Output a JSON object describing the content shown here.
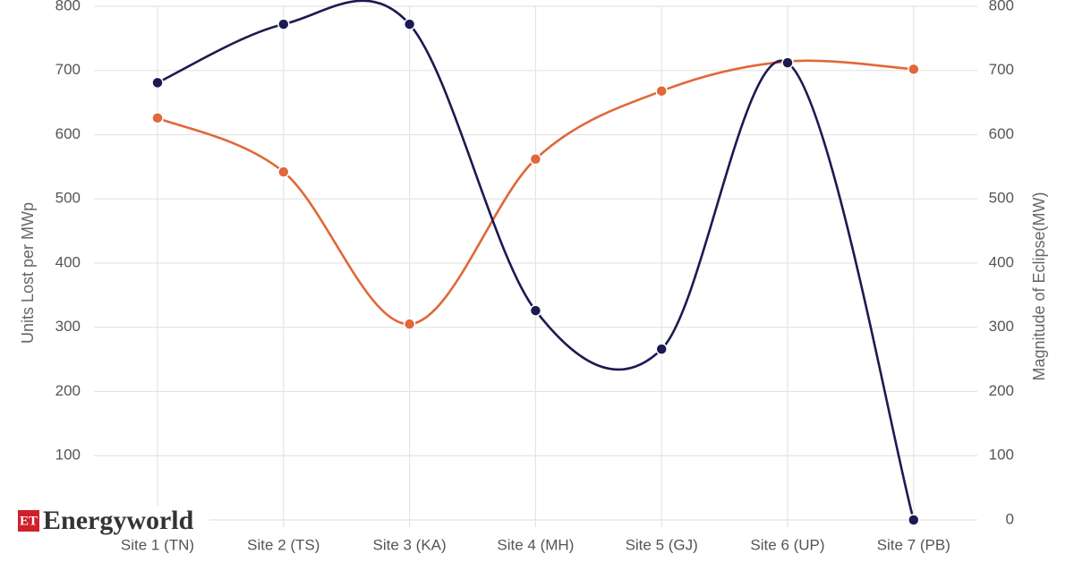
{
  "chart_data": {
    "type": "line",
    "brand": {
      "badge": "ET",
      "name": "Energyworld"
    },
    "categories": [
      "Site 1 (TN)",
      "Site 2 (TS)",
      "Site 3 (KA)",
      "Site 4 (MH)",
      "Site 5 (GJ)",
      "Site 6 (UP)",
      "Site 7 (PB)"
    ],
    "y_label": "Units Lost per MWp",
    "y2_label": "Magnitude of Eclipse(MW)",
    "ylim": [
      0,
      800
    ],
    "yticks": [
      0,
      100,
      200,
      300,
      400,
      500,
      600,
      700,
      800
    ],
    "y2lim": [
      0,
      800
    ],
    "y2ticks": [
      0,
      100,
      200,
      300,
      400,
      500,
      600,
      700,
      800
    ],
    "grid": true,
    "smooth": true,
    "series": [
      {
        "color": "#e0683a",
        "values": [
          626,
          542,
          305,
          562,
          668,
          714,
          702
        ]
      },
      {
        "color": "#1c1a52",
        "axis": "y2",
        "values": [
          681,
          772,
          772,
          326,
          266,
          712,
          0
        ]
      }
    ]
  }
}
